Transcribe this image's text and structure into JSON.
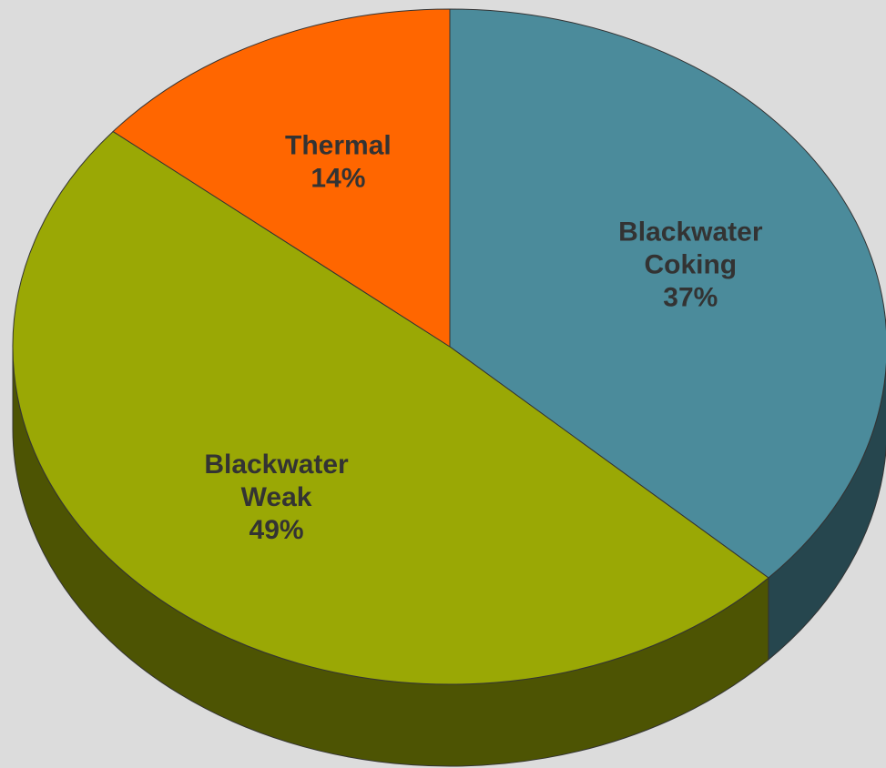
{
  "chart_data": {
    "type": "pie3d",
    "categories": [
      "Blackwater Coking",
      "Blackwater Weak",
      "Thermal"
    ],
    "values": [
      37,
      49,
      14
    ],
    "value_labels": [
      "37%",
      "49%",
      "14%"
    ],
    "colors": [
      "#4b8b9b",
      "#9aa805",
      "#ff6600"
    ]
  }
}
